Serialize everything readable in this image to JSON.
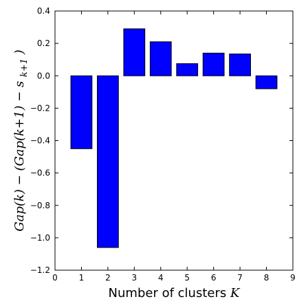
{
  "chart_data": {
    "type": "bar",
    "categories": [
      "1",
      "2",
      "3",
      "4",
      "5",
      "6",
      "7",
      "8"
    ],
    "x": [
      1,
      2,
      3,
      4,
      5,
      6,
      7,
      8
    ],
    "values": [
      -0.45,
      -1.06,
      0.29,
      0.21,
      0.075,
      0.14,
      0.135,
      -0.08
    ],
    "xlabel_text": "Number of clusters",
    "xlabel_var": "K",
    "ylabel_text": "Gap(k) − (Gap(k+1) − s",
    "ylabel_sub": "k+1",
    "ylabel_close": ")",
    "xlim": [
      0,
      9
    ],
    "ylim": [
      -1.2,
      0.4
    ],
    "xticks": [
      "0",
      "1",
      "2",
      "3",
      "4",
      "5",
      "6",
      "7",
      "8",
      "9"
    ],
    "yticks": [
      "−1.2",
      "−1.0",
      "−0.8",
      "−0.6",
      "−0.4",
      "−0.2",
      "0.0",
      "0.2",
      "0.4"
    ],
    "ytick_values": [
      -1.2,
      -1.0,
      -0.8,
      -0.6,
      -0.4,
      -0.2,
      0.0,
      0.2,
      0.4
    ],
    "bar_color": "#0000ff",
    "edge_color": "#000000",
    "grid": false
  }
}
